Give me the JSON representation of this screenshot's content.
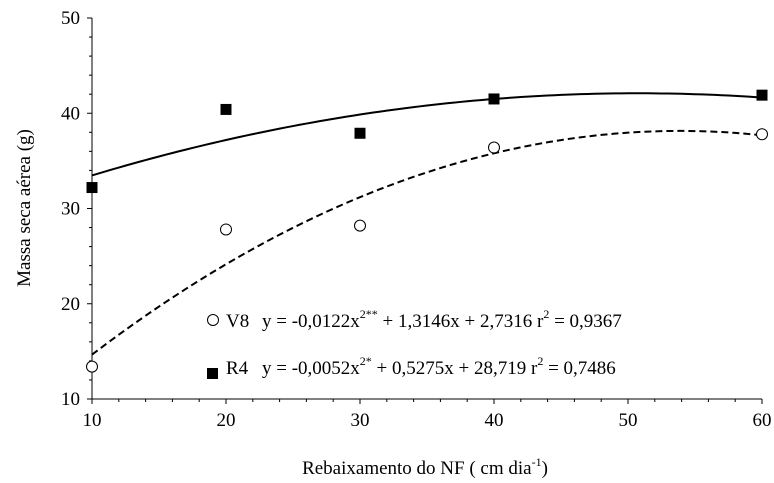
{
  "chart_data": {
    "type": "scatter",
    "title": "",
    "xlabel": "Rebaixamento do NF ( cm dia",
    "xlabel_sup": "-1",
    "xlabel_close": ")",
    "ylabel": "Massa seca aérea (g)",
    "xlim": [
      10,
      60
    ],
    "ylim": [
      10,
      50
    ],
    "x_ticks": [
      "10",
      "20",
      "30",
      "40",
      "50",
      "60"
    ],
    "y_ticks": [
      "10",
      "20",
      "30",
      "40",
      "50"
    ],
    "grid": false,
    "series": [
      {
        "name": "V8",
        "marker": "open-circle",
        "line_style": "dashed",
        "x": [
          10,
          20,
          30,
          40,
          60
        ],
        "y": [
          13.4,
          27.8,
          28.2,
          36.4,
          37.8
        ],
        "fit": {
          "a": -0.0122,
          "b": 1.3146,
          "c": 2.7316
        },
        "equation": {
          "part1": "y = -0,0122x",
          "sup": "2**",
          "part2": " + 1,3146x + 2,7316  r",
          "sup2": "2",
          "part3": " = 0,9367"
        }
      },
      {
        "name": "R4",
        "marker": "filled-square",
        "line_style": "solid",
        "x": [
          10,
          20,
          30,
          40,
          60
        ],
        "y": [
          32.2,
          40.4,
          37.9,
          41.5,
          41.9
        ],
        "fit": {
          "a": -0.0052,
          "b": 0.5275,
          "c": 28.719
        },
        "equation": {
          "part1": "y = -0,0052x",
          "sup": "2*",
          "part2": " + 0,5275x + 28,719 r",
          "sup2": "2",
          "part3": " = 0,7486"
        }
      }
    ]
  }
}
